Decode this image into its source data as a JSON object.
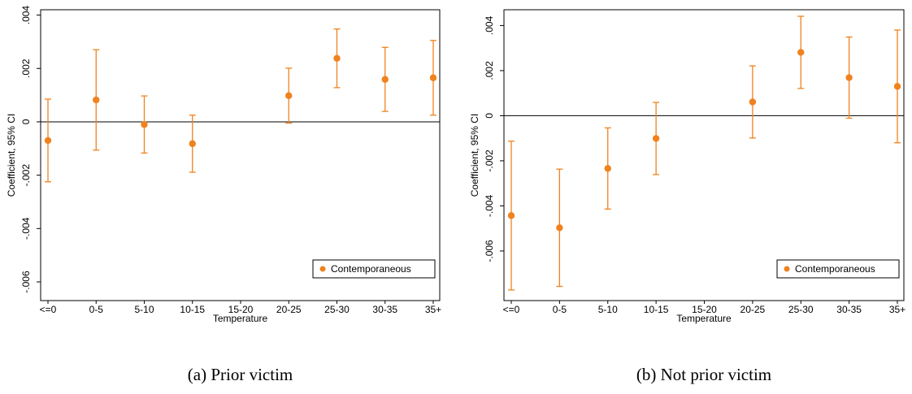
{
  "chart_data": [
    {
      "type": "errorbar",
      "caption": "(a) Prior victim",
      "xlabel": "Temperature",
      "ylabel": "Coefficient, 95% CI",
      "categories": [
        "<=0",
        "0-5",
        "5-10",
        "10-15",
        "15-20",
        "20-25",
        "25-30",
        "30-35",
        "35+"
      ],
      "series": [
        {
          "name": "Contemporaneous",
          "color": "#f0821e",
          "values": [
            -0.0007,
            0.00082,
            -0.0001,
            -0.00082,
            null,
            0.00098,
            0.00238,
            0.00159,
            0.00165
          ],
          "errors": [
            0.00155,
            0.00188,
            0.00107,
            0.00107,
            null,
            0.00103,
            0.0011,
            0.0012,
            0.0014
          ]
        }
      ],
      "ylim": [
        -0.0067,
        0.0042
      ],
      "yticks": [
        {
          "value": -0.006,
          "label": "-.006"
        },
        {
          "value": -0.004,
          "label": "-.004"
        },
        {
          "value": -0.002,
          "label": "-.002"
        },
        0,
        {
          "value": 0.002,
          "label": ".002"
        },
        {
          "value": 0.004,
          "label": ".004"
        }
      ],
      "yline": 0,
      "legend": "bottom-right"
    },
    {
      "type": "errorbar",
      "caption": "(b) Not prior victim",
      "xlabel": "Temperature",
      "ylabel": "Coefficient, 95% CI",
      "categories": [
        "<=0",
        "0-5",
        "5-10",
        "10-15",
        "15-20",
        "20-25",
        "25-30",
        "30-35",
        "35+"
      ],
      "series": [
        {
          "name": "Contemporaneous",
          "color": "#f0821e",
          "values": [
            -0.00443,
            -0.00497,
            -0.00234,
            -0.00101,
            null,
            0.00061,
            0.00281,
            0.00169,
            0.0013
          ],
          "errors": [
            0.0033,
            0.0026,
            0.0018,
            0.0016,
            null,
            0.0016,
            0.0016,
            0.0018,
            0.0025
          ]
        }
      ],
      "ylim": [
        -0.0082,
        0.0047
      ],
      "yticks": [
        {
          "value": -0.006,
          "label": "-.006"
        },
        {
          "value": -0.004,
          "label": "-.004"
        },
        {
          "value": -0.002,
          "label": "-.002"
        },
        0,
        {
          "value": 0.002,
          "label": ".002"
        },
        {
          "value": 0.004,
          "label": ".004"
        }
      ],
      "yline": 0,
      "legend": "bottom-right"
    }
  ]
}
